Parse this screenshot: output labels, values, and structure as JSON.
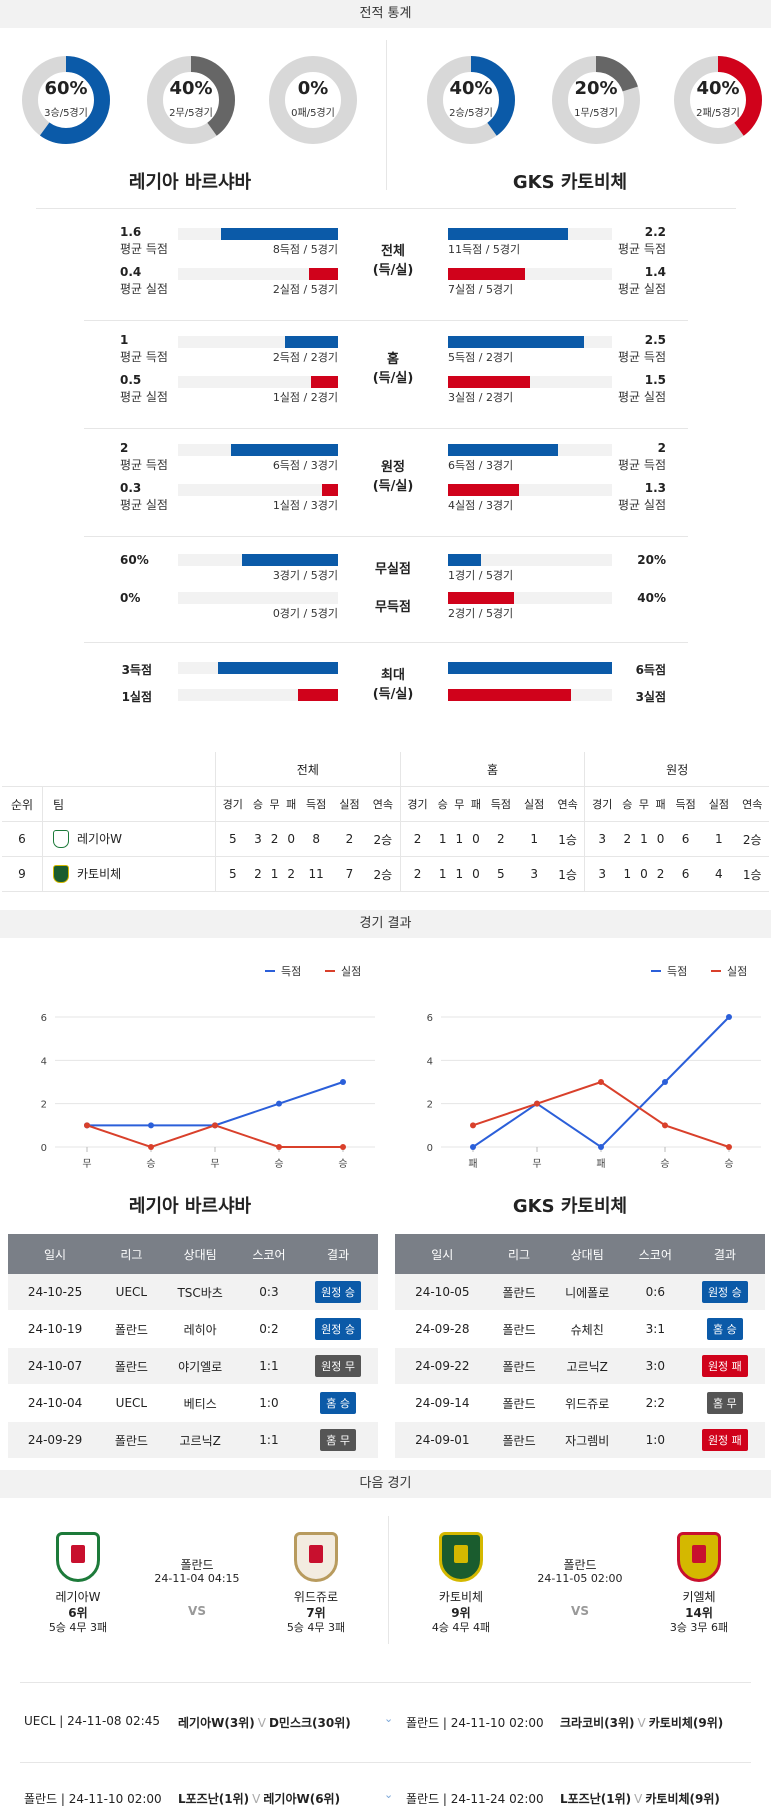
{
  "sections": {
    "stats": "전적 통계",
    "results": "경기 결과",
    "next": "다음 경기"
  },
  "colors": {
    "blue": "#0b5aa8",
    "red": "#d0021b",
    "gray": "#666666",
    "light": "#d8d8d8"
  },
  "home": {
    "name": "레기아 바르샤바",
    "donuts": [
      {
        "pct": "60%",
        "sub": "3승/5경기",
        "value": 0.6,
        "color": "#0b5aa8"
      },
      {
        "pct": "40%",
        "sub": "2무/5경기",
        "value": 0.4,
        "color": "#666666"
      },
      {
        "pct": "0%",
        "sub": "0패/5경기",
        "value": 0,
        "color": "#d0021b"
      }
    ]
  },
  "away": {
    "name": "GKS 카토비체",
    "donuts": [
      {
        "pct": "40%",
        "sub": "2승/5경기",
        "value": 0.4,
        "color": "#0b5aa8"
      },
      {
        "pct": "20%",
        "sub": "1무/5경기",
        "value": 0.2,
        "color": "#666666"
      },
      {
        "pct": "40%",
        "sub": "2패/5경기",
        "value": 0.4,
        "color": "#d0021b"
      }
    ]
  },
  "stat_groups": [
    {
      "label1": "전체",
      "label2": "(득/실)",
      "home": [
        {
          "num": "1.6",
          "lbl": "평균 득점",
          "bar": "8득점 / 5경기",
          "v": 0.73,
          "c": "blue"
        },
        {
          "num": "0.4",
          "lbl": "평균 실점",
          "bar": "2실점 / 5경기",
          "v": 0.18,
          "c": "red"
        }
      ],
      "away": [
        {
          "num": "2.2",
          "lbl": "평균 득점",
          "bar": "11득점 / 5경기",
          "v": 0.73,
          "c": "blue"
        },
        {
          "num": "1.4",
          "lbl": "평균 실점",
          "bar": "7실점 / 5경기",
          "v": 0.47,
          "c": "red"
        }
      ]
    },
    {
      "label1": "홈",
      "label2": "(득/실)",
      "home": [
        {
          "num": "1",
          "lbl": "평균 득점",
          "bar": "2득점 / 2경기",
          "v": 0.33,
          "c": "blue"
        },
        {
          "num": "0.5",
          "lbl": "평균 실점",
          "bar": "1실점 / 2경기",
          "v": 0.17,
          "c": "red"
        }
      ],
      "away": [
        {
          "num": "2.5",
          "lbl": "평균 득점",
          "bar": "5득점 / 2경기",
          "v": 0.83,
          "c": "blue"
        },
        {
          "num": "1.5",
          "lbl": "평균 실점",
          "bar": "3실점 / 2경기",
          "v": 0.5,
          "c": "red"
        }
      ]
    },
    {
      "label1": "원정",
      "label2": "(득/실)",
      "home": [
        {
          "num": "2",
          "lbl": "평균 득점",
          "bar": "6득점 / 3경기",
          "v": 0.67,
          "c": "blue"
        },
        {
          "num": "0.3",
          "lbl": "평균 실점",
          "bar": "1실점 / 3경기",
          "v": 0.1,
          "c": "red"
        }
      ],
      "away": [
        {
          "num": "2",
          "lbl": "평균 득점",
          "bar": "6득점 / 3경기",
          "v": 0.67,
          "c": "blue"
        },
        {
          "num": "1.3",
          "lbl": "평균 실점",
          "bar": "4실점 / 3경기",
          "v": 0.43,
          "c": "red"
        }
      ]
    }
  ],
  "clean": {
    "home": [
      {
        "num": "60%",
        "bar": "3경기 / 5경기",
        "v": 0.6,
        "c": "blue"
      },
      {
        "num": "0%",
        "bar": "0경기 / 5경기",
        "v": 0,
        "c": "red"
      }
    ],
    "away": [
      {
        "num": "20%",
        "bar": "1경기 / 5경기",
        "v": 0.2,
        "c": "blue"
      },
      {
        "num": "40%",
        "bar": "2경기 / 5경기",
        "v": 0.4,
        "c": "red"
      }
    ],
    "labels": [
      "무실점",
      "무득점"
    ]
  },
  "max": {
    "home": [
      {
        "num": "3득점",
        "v": 0.75,
        "c": "blue"
      },
      {
        "num": "1실점",
        "v": 0.25,
        "c": "red"
      }
    ],
    "away": [
      {
        "num": "6득점",
        "v": 1.0,
        "c": "blue"
      },
      {
        "num": "3실점",
        "v": 0.75,
        "c": "red"
      }
    ],
    "label1": "최대",
    "label2": "(득/실)"
  },
  "standings": {
    "groups": [
      "전체",
      "홈",
      "원정"
    ],
    "headers": [
      "순위",
      "팀"
    ],
    "sub": [
      "경기",
      "승",
      "무",
      "패",
      "득점",
      "실점",
      "연속"
    ],
    "rows": [
      {
        "rank": "6",
        "team": "레기아W",
        "all": [
          "5",
          "3",
          "2",
          "0",
          "8",
          "2",
          "2승"
        ],
        "home": [
          "2",
          "1",
          "1",
          "0",
          "2",
          "1",
          "1승"
        ],
        "away": [
          "3",
          "2",
          "1",
          "0",
          "6",
          "1",
          "2승"
        ]
      },
      {
        "rank": "9",
        "team": "카토비체",
        "all": [
          "5",
          "2",
          "1",
          "2",
          "11",
          "7",
          "2승"
        ],
        "home": [
          "2",
          "1",
          "1",
          "0",
          "5",
          "3",
          "1승"
        ],
        "away": [
          "3",
          "1",
          "0",
          "2",
          "6",
          "4",
          "1승"
        ]
      }
    ]
  },
  "legend": {
    "scored": "득점",
    "conceded": "실점"
  },
  "chart_data": [
    {
      "type": "line",
      "categories": [
        "무",
        "승",
        "무",
        "승",
        "승"
      ],
      "yticks": [
        0,
        2,
        4,
        6
      ],
      "ylim": [
        0,
        6
      ],
      "series": [
        {
          "name": "득점",
          "values": [
            1,
            1,
            1,
            2,
            3
          ],
          "color": "#2b5fd9"
        },
        {
          "name": "실점",
          "values": [
            1,
            0,
            1,
            0,
            0
          ],
          "color": "#d9402b"
        }
      ]
    },
    {
      "type": "line",
      "categories": [
        "패",
        "무",
        "패",
        "승",
        "승"
      ],
      "yticks": [
        0,
        2,
        4,
        6
      ],
      "ylim": [
        0,
        6
      ],
      "series": [
        {
          "name": "득점",
          "values": [
            0,
            2,
            0,
            3,
            6
          ],
          "color": "#2b5fd9"
        },
        {
          "name": "실점",
          "values": [
            1,
            2,
            3,
            1,
            0
          ],
          "color": "#d9402b"
        }
      ]
    }
  ],
  "results_headers": [
    "일시",
    "리그",
    "상대팀",
    "스코어",
    "결과"
  ],
  "results_home": [
    {
      "date": "24-10-25",
      "league": "UECL",
      "opp": "TSC바츠",
      "score": "0:3",
      "res": "원정 승",
      "color": "#0b5aa8"
    },
    {
      "date": "24-10-19",
      "league": "폴란드",
      "opp": "레히아",
      "score": "0:2",
      "res": "원정 승",
      "color": "#0b5aa8"
    },
    {
      "date": "24-10-07",
      "league": "폴란드",
      "opp": "야기엘로",
      "score": "1:1",
      "res": "원정 무",
      "color": "#555555"
    },
    {
      "date": "24-10-04",
      "league": "UECL",
      "opp": "베티스",
      "score": "1:0",
      "res": "홈 승",
      "color": "#0b5aa8"
    },
    {
      "date": "24-09-29",
      "league": "폴란드",
      "opp": "고르닉Z",
      "score": "1:1",
      "res": "홈 무",
      "color": "#555555"
    }
  ],
  "results_away": [
    {
      "date": "24-10-05",
      "league": "폴란드",
      "opp": "니에폴로",
      "score": "0:6",
      "res": "원정 승",
      "color": "#0b5aa8"
    },
    {
      "date": "24-09-28",
      "league": "폴란드",
      "opp": "슈체친",
      "score": "3:1",
      "res": "홈 승",
      "color": "#0b5aa8"
    },
    {
      "date": "24-09-22",
      "league": "폴란드",
      "opp": "고르닉Z",
      "score": "3:0",
      "res": "원정 패",
      "color": "#d0021b"
    },
    {
      "date": "24-09-14",
      "league": "폴란드",
      "opp": "위드쥬로",
      "score": "2:2",
      "res": "홈 무",
      "color": "#555555"
    },
    {
      "date": "24-09-01",
      "league": "폴란드",
      "opp": "자그렘비",
      "score": "1:0",
      "res": "원정 패",
      "color": "#d0021b"
    }
  ],
  "next": [
    {
      "league": "폴란드",
      "dt": "24-11-04 04:15",
      "vs": "VS",
      "t1": {
        "name": "레기아W",
        "rank": "6위",
        "rec": "5승 4무 3패"
      },
      "t2": {
        "name": "위드쥬로",
        "rank": "7위",
        "rec": "5승 4무 3패"
      }
    },
    {
      "league": "폴란드",
      "dt": "24-11-05 02:00",
      "vs": "VS",
      "t1": {
        "name": "카토비체",
        "rank": "9위",
        "rec": "4승 4무 4패"
      },
      "t2": {
        "name": "키엘체",
        "rank": "14위",
        "rec": "3승 3무 6패"
      }
    }
  ],
  "upcoming": [
    {
      "left": "UECL | 24-11-08 02:45",
      "t1": "레기아W(3위)",
      "v": "V",
      "t2": "D민스크(30위)"
    },
    {
      "left": "폴란드 | 24-11-10 02:00",
      "t1": "크라코비(3위)",
      "v": "V",
      "t2": "카토비체(9위)"
    },
    {
      "left": "폴란드 | 24-11-10 02:00",
      "t1": "L포즈난(1위)",
      "v": "V",
      "t2": "레기아W(6위)"
    },
    {
      "left": "폴란드 | 24-11-24 02:00",
      "t1": "L포즈난(1위)",
      "v": "V",
      "t2": "카토비체(9위)"
    }
  ]
}
